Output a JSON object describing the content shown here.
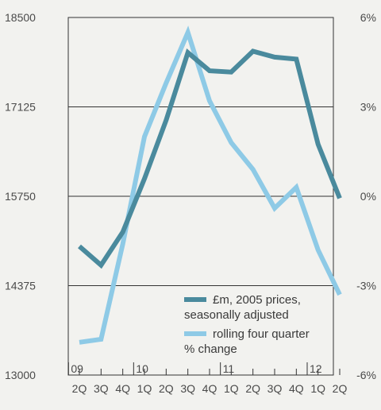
{
  "chart_data": {
    "type": "line",
    "title": "",
    "xlabel": "",
    "ylabel": "",
    "categories": [
      "2Q",
      "3Q",
      "4Q",
      "1Q",
      "2Q",
      "3Q",
      "4Q",
      "1Q",
      "2Q",
      "3Q",
      "4Q",
      "1Q",
      "2Q"
    ],
    "year_labels": [
      {
        "label": "09",
        "index": 0
      },
      {
        "label": "10",
        "index": 3
      },
      {
        "label": "11",
        "index": 7
      },
      {
        "label": "12",
        "index": 11
      }
    ],
    "y_left": {
      "ylim": [
        13000,
        18500
      ],
      "ticks": [
        13000,
        14375,
        15750,
        17125,
        18500
      ],
      "tick_labels": [
        "13000",
        "14375",
        "15750",
        "17125",
        "18500"
      ]
    },
    "y_right": {
      "ylim": [
        -6,
        6
      ],
      "ticks": [
        -6,
        -3,
        0,
        3,
        6
      ],
      "tick_labels": [
        "-6%",
        "-3%",
        "0%",
        "3%",
        "6%"
      ]
    },
    "grid": "horizontal",
    "legend_position": "bottom-right",
    "series": [
      {
        "name": "£m, 2005 prices, seasonally adjusted",
        "axis": "left",
        "color": "#4a8a9d",
        "values": [
          14980,
          14690,
          15200,
          16020,
          16920,
          17960,
          17680,
          17660,
          17980,
          17890,
          17860,
          16550,
          15720
        ]
      },
      {
        "name": "rolling four quarter % change",
        "axis": "right",
        "color": "#8ecae6",
        "values": [
          -4.9,
          -4.8,
          -1.6,
          2.0,
          3.8,
          5.5,
          3.2,
          1.8,
          0.9,
          -0.4,
          0.3,
          -1.8,
          -3.3
        ]
      }
    ]
  },
  "legend": {
    "series1_line1": "£m, 2005 prices,",
    "series1_line2": "seasonally adjusted",
    "series2_line1": "rolling four quarter",
    "series2_line2": "% change"
  }
}
